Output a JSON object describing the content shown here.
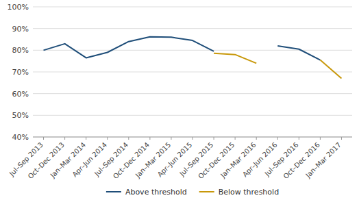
{
  "chart_data": {
    "type": "line",
    "categories": [
      "Jul–Sep 2013",
      "Oct–Dec 2013",
      "Jan–Mar 2014",
      "Apr–Jun 2014",
      "Jul–Sep 2014",
      "Oct–Dec 2014",
      "Jan–Mar 2015",
      "Apr–Jun 2015",
      "Jul–Sep 2015",
      "Oct–Dec 2015",
      "Jan–Mar 2016",
      "Apr–Jun 2016",
      "Jul–Sep 2016",
      "Oct–Dec 2016",
      "Jan–Mar 2017"
    ],
    "series": [
      {
        "name": "Above threshold",
        "color": "#1F4E79",
        "values": [
          0.8,
          0.83,
          0.765,
          0.79,
          0.84,
          0.862,
          0.86,
          0.845,
          0.795,
          null,
          null,
          0.82,
          0.805,
          0.755,
          null
        ]
      },
      {
        "name": "Below threshold",
        "color": "#C8980A",
        "values": [
          null,
          null,
          null,
          null,
          null,
          null,
          null,
          null,
          0.786,
          0.78,
          0.74,
          null,
          null,
          0.755,
          0.67
        ]
      }
    ],
    "ylim": [
      0.4,
      1.0
    ],
    "yticks": [
      {
        "value": 0.4,
        "label": "40%"
      },
      {
        "value": 0.5,
        "label": "50%"
      },
      {
        "value": 0.6,
        "label": "60%"
      },
      {
        "value": 0.7,
        "label": "70%"
      },
      {
        "value": 0.8,
        "label": "80%"
      },
      {
        "value": 0.9,
        "label": "90%"
      },
      {
        "value": 1.0,
        "label": "100%"
      }
    ],
    "grid": true,
    "legend": "bottom"
  }
}
